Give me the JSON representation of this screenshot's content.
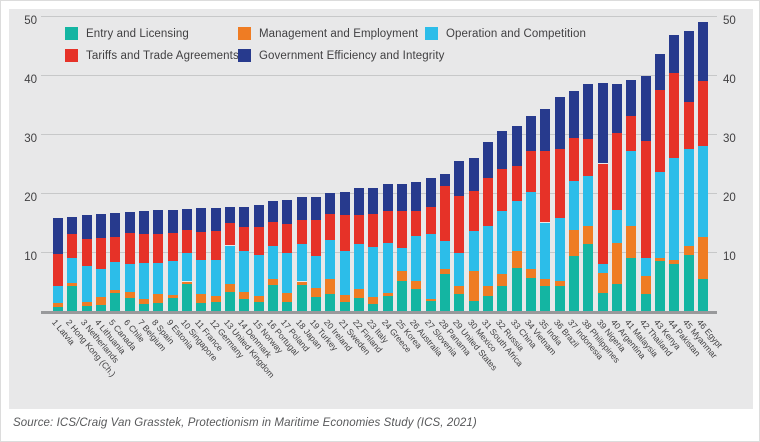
{
  "source": "Source: ICS/Craig Van Grasstek, Protectionism in Maritime Economies Study (ICS, 2021)",
  "y_axis": {
    "ticks": [
      10,
      20,
      30,
      40,
      50
    ],
    "sides": "both"
  },
  "chart_data": {
    "type": "bar",
    "stacked": true,
    "title": "",
    "xlabel": "",
    "ylabel": "",
    "ylim": [
      0,
      50
    ],
    "yticks": [
      10,
      20,
      30,
      40,
      50
    ],
    "grid": true,
    "legend_position": "top",
    "categories": [
      "Latvia",
      "Hong Kong (Ch.)",
      "Netherlands",
      "Lithuania",
      "Canada",
      "Chile",
      "Belgium",
      "Spain",
      "Estonia",
      "Singapore",
      "France",
      "Germany",
      "United Kingdom",
      "Denmark",
      "Norway",
      "Portugal",
      "Poland",
      "Japan",
      "Turkey",
      "Ireland",
      "Sweden",
      "Finland",
      "Italy",
      "Greece",
      "Korea",
      "Australia",
      "Slovenia",
      "Panama",
      "United States",
      "Mexico",
      "South Africa",
      "Russia",
      "China",
      "Vietnam",
      "India",
      "Brazil",
      "Indonesia",
      "Philippines",
      "Nigeria",
      "Argentina",
      "Malaysia",
      "Thailand",
      "Kenya",
      "Pakistan",
      "Myanmar",
      "Egypt"
    ],
    "ranks": [
      1,
      2,
      3,
      4,
      5,
      6,
      7,
      8,
      9,
      10,
      11,
      12,
      13,
      14,
      15,
      16,
      17,
      18,
      19,
      20,
      21,
      22,
      23,
      24,
      25,
      26,
      27,
      28,
      29,
      30,
      31,
      32,
      33,
      34,
      35,
      36,
      37,
      38,
      39,
      40,
      41,
      42,
      43,
      44,
      45,
      46
    ],
    "series": [
      {
        "name": "Entry and Licensing",
        "key": "entry",
        "color": "#14b5a2",
        "values": [
          0.7,
          4.3,
          0.8,
          1.0,
          3.0,
          2.2,
          1.2,
          1.4,
          2.2,
          4.6,
          1.4,
          1.5,
          3.3,
          2.1,
          1.5,
          4.4,
          1.6,
          4.4,
          2.4,
          2.9,
          1.6,
          2.2,
          1.2,
          2.6,
          5.1,
          3.7,
          1.7,
          6.2,
          2.8,
          1.7,
          2.5,
          4.2,
          7.3,
          5.6,
          4.2,
          4.2,
          9.3,
          11.3,
          3.0,
          4.5,
          9.0,
          2.8,
          8.5,
          7.9,
          9.5,
          5.5
        ]
      },
      {
        "name": "Management and Employment",
        "key": "management",
        "color": "#ef7c23",
        "values": [
          0.6,
          0.4,
          0.7,
          1.4,
          0.6,
          1.0,
          0.8,
          1.5,
          0.5,
          0.4,
          1.5,
          1.0,
          1.3,
          1.2,
          1.0,
          1.0,
          1.4,
          0.6,
          1.5,
          2.6,
          1.1,
          1.6,
          1.2,
          0.4,
          1.7,
          1.4,
          0.4,
          0.9,
          1.4,
          5.1,
          1.7,
          2.0,
          2.9,
          1.5,
          1.2,
          0.9,
          4.5,
          3.1,
          3.5,
          7.1,
          5.4,
          3.1,
          0.5,
          0.8,
          1.5,
          7.0
        ]
      },
      {
        "name": "Operation and Competition",
        "key": "operation",
        "color": "#2cbde9",
        "values": [
          2.9,
          4.3,
          6.2,
          4.7,
          4.7,
          4.8,
          6.2,
          5.2,
          5.7,
          4.8,
          5.7,
          6.2,
          6.5,
          6.8,
          7.0,
          5.7,
          6.8,
          6.4,
          5.5,
          6.5,
          7.5,
          7.5,
          8.5,
          8.5,
          3.9,
          7.6,
          10.9,
          4.8,
          5.7,
          6.8,
          10.2,
          10.7,
          8.4,
          13.0,
          9.6,
          10.7,
          8.2,
          8.5,
          1.5,
          5.6,
          12.7,
          3.1,
          14.5,
          17.2,
          16.5,
          15.5
        ]
      },
      {
        "name": "Tariffs and Trade Agreements",
        "key": "tariffs",
        "color": "#e63228",
        "values": [
          5.4,
          4.0,
          4.5,
          5.3,
          4.3,
          5.3,
          4.8,
          5.0,
          4.8,
          4.0,
          4.8,
          4.8,
          3.8,
          4.2,
          4.8,
          4.0,
          5.0,
          4.0,
          6.0,
          4.5,
          6.0,
          5.0,
          5.5,
          5.5,
          6.2,
          4.2,
          4.6,
          9.3,
          9.6,
          6.7,
          8.1,
          7.1,
          6.0,
          7.0,
          12.1,
          11.6,
          7.4,
          6.2,
          17.0,
          13.0,
          6.0,
          19.8,
          14.0,
          14.4,
          8.0,
          11.0
        ]
      },
      {
        "name": "Government Efficiency and Integrity",
        "key": "government",
        "color": "#273a8d",
        "values": [
          6.1,
          3.0,
          4.0,
          4.0,
          4.0,
          3.5,
          4.0,
          4.0,
          4.0,
          3.5,
          4.0,
          4.0,
          2.7,
          3.3,
          3.7,
          3.5,
          4.0,
          4.0,
          4.0,
          3.5,
          4.0,
          4.5,
          4.5,
          4.5,
          4.6,
          4.9,
          5.0,
          2.1,
          6.0,
          5.6,
          6.2,
          6.5,
          6.8,
          6.0,
          7.1,
          8.8,
          7.9,
          9.3,
          13.7,
          8.3,
          6.1,
          11.0,
          6.1,
          6.4,
          12.0,
          10.0
        ]
      }
    ]
  }
}
